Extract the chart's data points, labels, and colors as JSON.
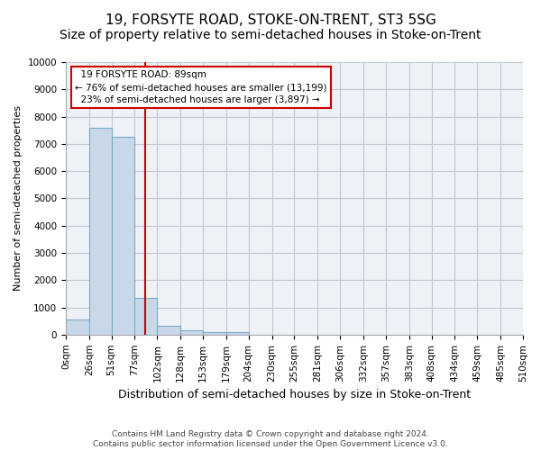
{
  "title": "19, FORSYTE ROAD, STOKE-ON-TRENT, ST3 5SG",
  "subtitle": "Size of property relative to semi-detached houses in Stoke-on-Trent",
  "xlabel": "Distribution of semi-detached houses by size in Stoke-on-Trent",
  "ylabel": "Number of semi-detached properties",
  "footer_line1": "Contains HM Land Registry data © Crown copyright and database right 2024.",
  "footer_line2": "Contains public sector information licensed under the Open Government Licence v3.0.",
  "bar_values": [
    550,
    7600,
    7250,
    1350,
    310,
    150,
    100,
    80,
    0,
    0,
    0,
    0,
    0,
    0,
    0,
    0,
    0,
    0,
    0,
    0
  ],
  "bin_edges": [
    0,
    26,
    51,
    77,
    102,
    128,
    153,
    179,
    204,
    230,
    255,
    281,
    306,
    332,
    357,
    383,
    408,
    434,
    459,
    485,
    510
  ],
  "tick_labels": [
    "0sqm",
    "26sqm",
    "51sqm",
    "77sqm",
    "102sqm",
    "128sqm",
    "153sqm",
    "179sqm",
    "204sqm",
    "230sqm",
    "255sqm",
    "281sqm",
    "306sqm",
    "332sqm",
    "357sqm",
    "383sqm",
    "408sqm",
    "434sqm",
    "459sqm",
    "485sqm",
    "510sqm"
  ],
  "ylim": [
    0,
    10000
  ],
  "yticks": [
    0,
    1000,
    2000,
    3000,
    4000,
    5000,
    6000,
    7000,
    8000,
    9000,
    10000
  ],
  "property_size": 89,
  "property_label": "19 FORSYTE ROAD: 89sqm",
  "pct_smaller": 76,
  "count_smaller": 13199,
  "pct_larger": 23,
  "count_larger": 3897,
  "bar_color": "#c8d8e8",
  "bar_edge_color": "#7aaac8",
  "vline_color": "#cc0000",
  "annotation_box_edge": "#cc0000",
  "grid_color": "#c0c8d0",
  "bg_color": "#eef2f6",
  "title_fontsize": 11,
  "subtitle_fontsize": 10,
  "footer_fontsize": 6.5,
  "tick_fontsize": 7.5,
  "ylabel_fontsize": 8,
  "xlabel_fontsize": 9
}
